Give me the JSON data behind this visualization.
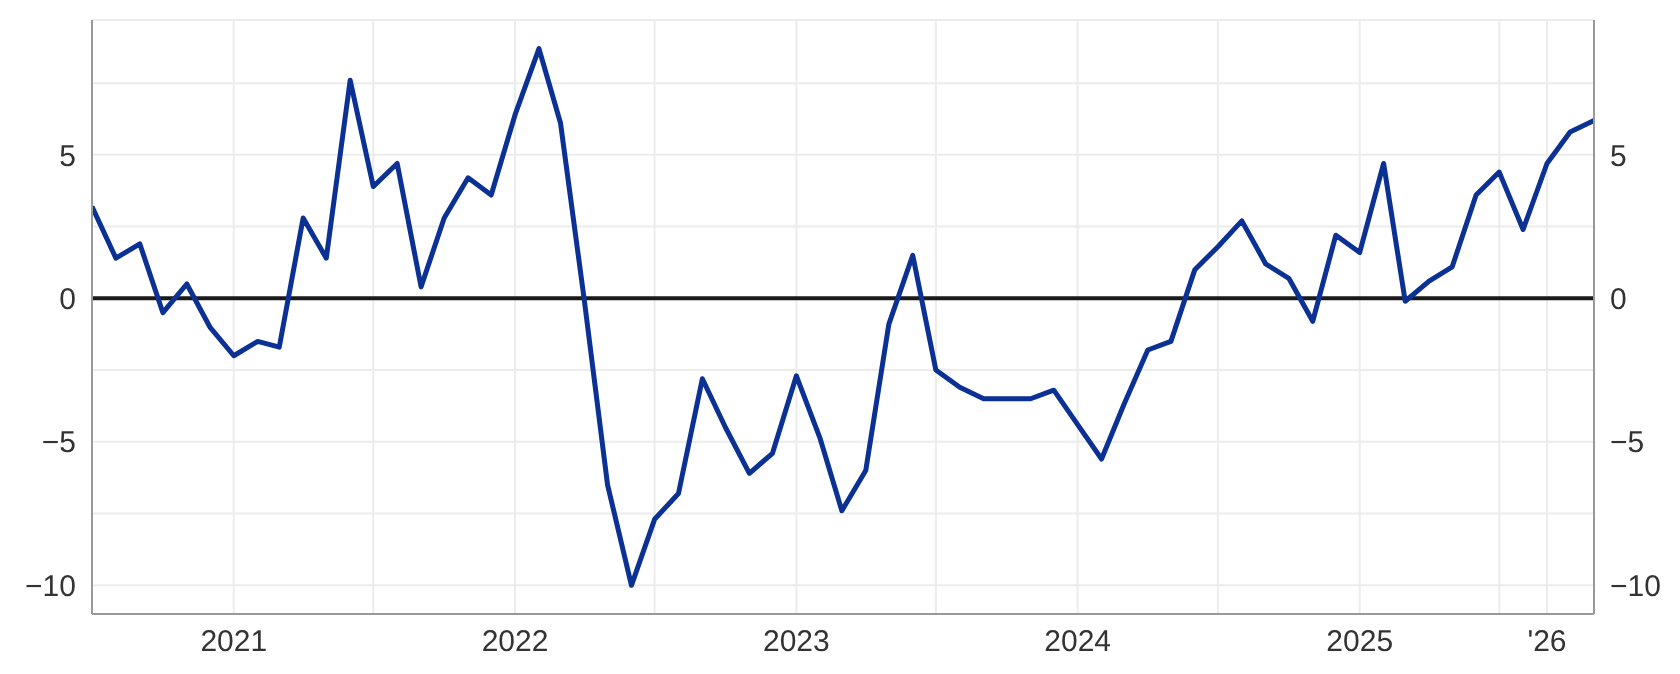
{
  "chart_data": {
    "type": "line",
    "x": [
      "2020-07",
      "2020-08",
      "2020-09",
      "2020-10",
      "2020-11",
      "2020-12",
      "2021-01",
      "2021-02",
      "2021-03",
      "2021-04",
      "2021-05",
      "2021-06",
      "2021-07",
      "2021-08",
      "2021-09",
      "2021-10",
      "2021-11",
      "2021-12",
      "2022-01",
      "2022-02",
      "2022-03",
      "2022-04",
      "2022-05",
      "2022-06",
      "2022-07",
      "2022-08",
      "2022-09",
      "2022-10",
      "2022-11",
      "2022-12",
      "2023-01",
      "2023-02",
      "2023-03",
      "2023-04",
      "2023-05",
      "2023-06",
      "2023-07",
      "2023-08",
      "2023-09",
      "2023-10",
      "2023-11",
      "2023-12",
      "2024-01",
      "2024-02",
      "2024-03",
      "2024-04",
      "2024-05",
      "2024-06",
      "2024-07",
      "2024-08",
      "2024-09",
      "2024-10",
      "2024-11",
      "2024-12",
      "2025-01",
      "2025-02",
      "2025-03",
      "2025-04",
      "2025-05",
      "2025-06",
      "2025-07",
      "2025-08",
      "2025-09",
      "2025-10",
      "2025-11"
    ],
    "series": [
      {
        "color": "#0b3195",
        "values": [
          3.2,
          1.4,
          1.9,
          -0.5,
          0.5,
          -1.0,
          -2.0,
          -1.5,
          -1.7,
          2.8,
          1.4,
          7.6,
          3.9,
          4.7,
          0.4,
          2.8,
          4.2,
          3.6,
          6.4,
          8.7,
          6.1,
          -0.1,
          -6.5,
          -10.0,
          -7.7,
          -6.8,
          -2.8,
          -4.5,
          -6.1,
          -5.4,
          -2.7,
          -4.9,
          -7.4,
          -6.0,
          -0.9,
          1.5,
          -2.5,
          -3.1,
          -3.5,
          -3.5,
          -3.5,
          -3.2,
          -4.4,
          -5.6,
          -3.7,
          -1.8,
          -1.5,
          1.0,
          1.8,
          2.7,
          1.2,
          0.7,
          -0.8,
          2.2,
          1.6,
          4.7,
          -0.1,
          0.6,
          1.1,
          3.6,
          4.4,
          2.4,
          4.7,
          5.8,
          6.2
        ]
      }
    ],
    "xlim": [
      "2020-07",
      "2025-11"
    ],
    "xticks": [
      {
        "value": "2021-01",
        "label": "2021"
      },
      {
        "value": "2021-07",
        "label": null
      },
      {
        "value": "2022-01",
        "label": "2022"
      },
      {
        "value": "2022-07",
        "label": null
      },
      {
        "value": "2023-01",
        "label": "2023"
      },
      {
        "value": "2023-07",
        "label": null
      },
      {
        "value": "2024-01",
        "label": "2024"
      },
      {
        "value": "2024-07",
        "label": null
      },
      {
        "value": "2025-01",
        "label": "2025"
      },
      {
        "value": "2025-07",
        "label": null
      },
      {
        "value": "2025-09",
        "label": "'26"
      }
    ],
    "ylim": [
      -11,
      9.7
    ],
    "yticks": [
      {
        "value": -10,
        "label": "−10"
      },
      {
        "value": -7.5,
        "label": null
      },
      {
        "value": -5,
        "label": "−5"
      },
      {
        "value": -2.5,
        "label": null
      },
      0,
      {
        "value": 2.5,
        "label": null
      },
      5,
      {
        "value": 7.5,
        "label": null
      }
    ],
    "y2lim": [
      -11,
      9.7
    ],
    "y2ticks": [
      {
        "value": -10,
        "label": "−10"
      },
      {
        "value": -7.5,
        "label": null
      },
      {
        "value": -5,
        "label": "−5"
      },
      {
        "value": -2.5,
        "label": null
      },
      0,
      {
        "value": 2.5,
        "label": null
      },
      5,
      {
        "value": 7.5,
        "label": null
      }
    ],
    "ref_lines": [
      {
        "axis": "y",
        "value": 0,
        "color": "#1a1a1a"
      }
    ],
    "grid": true,
    "legend": false,
    "marker": "none",
    "line_style": "solid"
  }
}
